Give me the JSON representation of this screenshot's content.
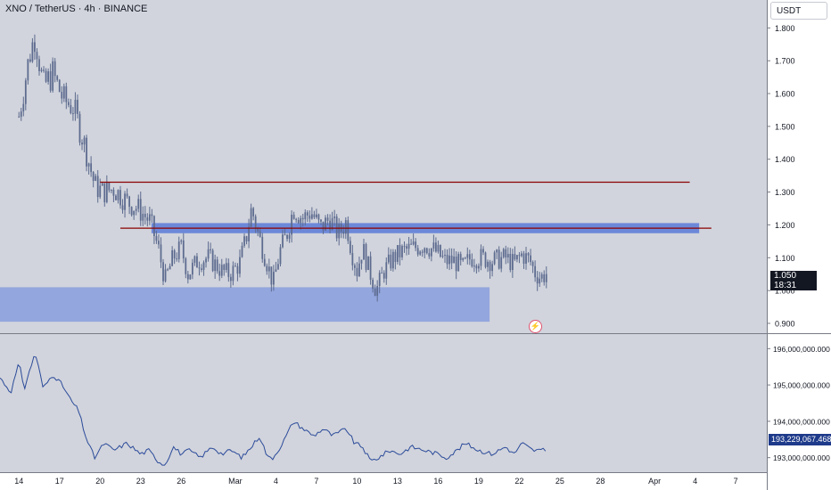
{
  "header": {
    "symbol_title": "XNO / TetherUS · 4h · BINANCE",
    "currency_button": "USDT"
  },
  "last_price": {
    "value": "1.050",
    "countdown": "18:31"
  },
  "indicator_last": "193,229,067.468",
  "alert_icon": "flash-icon",
  "colors": {
    "background": "#d1d4dc",
    "candle": "#5d6b8f",
    "resistance_line": "#8b0000",
    "zone": "#8fa3dd",
    "zone_border": "#4a6fd8",
    "indicator_line": "#2b4a9a",
    "axis_bg": "#ffffff"
  },
  "chart_data": [
    {
      "type": "candlestick",
      "title": "XNO / TetherUS · 4h · BINANCE",
      "y_ticks": [
        "1.800",
        "1.700",
        "1.600",
        "1.500",
        "1.400",
        "1.300",
        "1.200",
        "1.100",
        "1.000",
        "0.900"
      ],
      "ylim": [
        0.87,
        1.885
      ],
      "x_ticks": [
        "14",
        "17",
        "20",
        "23",
        "26",
        "Mar",
        "4",
        "7",
        "10",
        "13",
        "16",
        "19",
        "22",
        "25",
        "28",
        "Apr",
        "4",
        "7"
      ],
      "x_tick_days": [
        0,
        3,
        6,
        9,
        12,
        16,
        19,
        22,
        25,
        28,
        31,
        34,
        37,
        40,
        43,
        47,
        50,
        53
      ],
      "x_range_days": [
        -1.4,
        55.3
      ],
      "last_day": 39,
      "anchors": [
        [
          0,
          1.53
        ],
        [
          0.8,
          1.72
        ],
        [
          1.2,
          1.78
        ],
        [
          1.8,
          1.62
        ],
        [
          2.5,
          1.66
        ],
        [
          3.3,
          1.58
        ],
        [
          4.0,
          1.56
        ],
        [
          4.6,
          1.48
        ],
        [
          5.0,
          1.42
        ],
        [
          5.6,
          1.32
        ],
        [
          6.2,
          1.3
        ],
        [
          7.0,
          1.31
        ],
        [
          8.0,
          1.27
        ],
        [
          8.8,
          1.25
        ],
        [
          9.7,
          1.21
        ],
        [
          10.3,
          1.13
        ],
        [
          10.8,
          1.03
        ],
        [
          11.4,
          1.1
        ],
        [
          12.0,
          1.13
        ],
        [
          12.5,
          1.05
        ],
        [
          13.2,
          1.09
        ],
        [
          14.0,
          1.1
        ],
        [
          15.0,
          1.06
        ],
        [
          15.6,
          1.05
        ],
        [
          16.3,
          1.08
        ],
        [
          16.8,
          1.16
        ],
        [
          17.2,
          1.25
        ],
        [
          17.7,
          1.17
        ],
        [
          18.3,
          1.09
        ],
        [
          18.8,
          1.02
        ],
        [
          19.3,
          1.12
        ],
        [
          19.8,
          1.17
        ],
        [
          20.3,
          1.25
        ],
        [
          21.0,
          1.22
        ],
        [
          21.6,
          1.24
        ],
        [
          22.3,
          1.19
        ],
        [
          23.0,
          1.22
        ],
        [
          23.6,
          1.17
        ],
        [
          24.2,
          1.21
        ],
        [
          24.6,
          1.12
        ],
        [
          25.0,
          1.06
        ],
        [
          25.4,
          1.13
        ],
        [
          26.0,
          1.05
        ],
        [
          26.4,
          1.0
        ],
        [
          27.0,
          1.06
        ],
        [
          27.7,
          1.1
        ],
        [
          28.4,
          1.12
        ],
        [
          29.2,
          1.13
        ],
        [
          30.0,
          1.14
        ],
        [
          30.8,
          1.12
        ],
        [
          31.5,
          1.09
        ],
        [
          32.2,
          1.09
        ],
        [
          32.8,
          1.07
        ],
        [
          33.4,
          1.1
        ],
        [
          34.2,
          1.1
        ],
        [
          35.0,
          1.09
        ],
        [
          36.0,
          1.1
        ],
        [
          36.6,
          1.08
        ],
        [
          37.2,
          1.11
        ],
        [
          37.8,
          1.09
        ],
        [
          38.2,
          1.05
        ],
        [
          38.6,
          1.04
        ],
        [
          39.0,
          1.05
        ]
      ],
      "annotations": {
        "resistance_line": {
          "value": 1.33,
          "from_day": 6.0,
          "to_day": 49.6
        },
        "support_line": {
          "value": 1.19,
          "from_day": 7.5,
          "to_day": 51.2
        },
        "upper_zone": {
          "from": 1.18,
          "to": 1.2,
          "from_day": 9.8,
          "to_day": 50.3
        },
        "lower_zone": {
          "from": 0.905,
          "to": 1.01,
          "from_day": -1.4,
          "to_day": 34.8
        }
      }
    },
    {
      "type": "line",
      "y_ticks": [
        "196,000,000.000",
        "195,000,000.000",
        "194,000,000.000",
        "193,000,000.000"
      ],
      "ylim": [
        192.6,
        196.4
      ],
      "last_value": 193.229067468,
      "anchors": [
        [
          -1.4,
          195.2
        ],
        [
          -0.6,
          194.8
        ],
        [
          0.0,
          195.6
        ],
        [
          0.4,
          194.9
        ],
        [
          1.2,
          195.9
        ],
        [
          1.8,
          194.9
        ],
        [
          2.5,
          195.3
        ],
        [
          3.2,
          195.0
        ],
        [
          3.8,
          194.6
        ],
        [
          4.4,
          194.3
        ],
        [
          5.0,
          193.5
        ],
        [
          5.6,
          193.0
        ],
        [
          6.3,
          193.4
        ],
        [
          7.0,
          193.2
        ],
        [
          8.0,
          193.4
        ],
        [
          9.0,
          193.1
        ],
        [
          9.6,
          193.2
        ],
        [
          10.3,
          192.9
        ],
        [
          10.8,
          192.8
        ],
        [
          11.4,
          193.3
        ],
        [
          12.0,
          193.1
        ],
        [
          12.6,
          193.2
        ],
        [
          13.4,
          193.0
        ],
        [
          14.3,
          193.3
        ],
        [
          15.0,
          193.1
        ],
        [
          15.7,
          193.2
        ],
        [
          16.5,
          193.0
        ],
        [
          17.2,
          193.3
        ],
        [
          17.8,
          193.6
        ],
        [
          18.4,
          193.0
        ],
        [
          18.8,
          193.0
        ],
        [
          19.5,
          193.4
        ],
        [
          20.3,
          194.0
        ],
        [
          21.0,
          193.8
        ],
        [
          21.8,
          193.6
        ],
        [
          22.5,
          193.8
        ],
        [
          23.2,
          193.6
        ],
        [
          24.2,
          193.8
        ],
        [
          24.8,
          193.4
        ],
        [
          25.4,
          193.3
        ],
        [
          26.0,
          192.9
        ],
        [
          26.6,
          193.0
        ],
        [
          27.4,
          193.2
        ],
        [
          28.2,
          193.1
        ],
        [
          29.0,
          193.3
        ],
        [
          30.0,
          193.2
        ],
        [
          31.0,
          193.1
        ],
        [
          31.6,
          193.0
        ],
        [
          32.4,
          193.2
        ],
        [
          33.0,
          193.4
        ],
        [
          34.0,
          193.2
        ],
        [
          35.0,
          193.1
        ],
        [
          36.0,
          193.3
        ],
        [
          36.6,
          193.1
        ],
        [
          37.2,
          193.4
        ],
        [
          38.0,
          193.2
        ],
        [
          39.0,
          193.2
        ]
      ]
    }
  ]
}
